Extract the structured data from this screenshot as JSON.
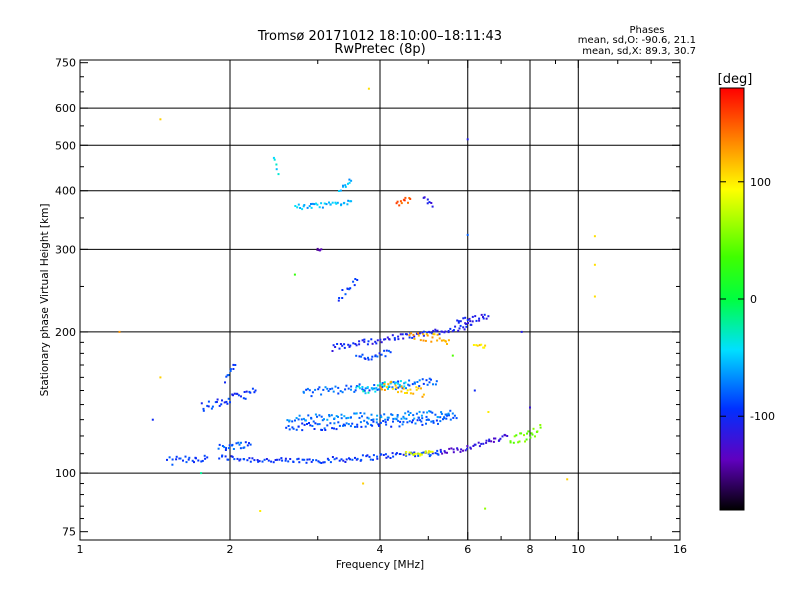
{
  "header": {
    "title_line1": "Tromsø 20171012 18:10:00–18:11:43",
    "title_line2": "RwPretec (8p)"
  },
  "phases_box": {
    "heading": "Phases",
    "line_o": "mean, sd,O: -90.6, 21.1",
    "line_x": "mean, sd,X:  89.3, 30.7"
  },
  "chart_data": {
    "type": "scatter",
    "xlabel": "Frequency [MHz]",
    "ylabel": "Stationary phase Virtual Height [km]",
    "x_scale": "log",
    "y_scale": "log",
    "xlim": [
      1,
      16
    ],
    "ylim": [
      72,
      760
    ],
    "x_ticks": [
      1,
      2,
      4,
      6,
      8,
      10,
      16
    ],
    "x_tick_labels": [
      "1",
      "2",
      "4",
      "6",
      "8",
      "10",
      "16"
    ],
    "x_minor_ticks": [
      3,
      5,
      7,
      9,
      12,
      14
    ],
    "y_ticks": [
      75,
      100,
      200,
      300,
      400,
      500,
      600,
      750
    ],
    "y_tick_labels": [
      "75",
      "100",
      "200",
      "300",
      "400",
      "500",
      "600",
      "750"
    ],
    "y_minor_ticks": [
      80,
      85,
      90,
      95,
      110,
      120,
      130,
      140,
      150,
      160,
      170,
      180,
      190,
      250,
      350,
      450,
      550,
      650,
      700
    ],
    "x_grid": [
      2,
      4,
      6,
      8,
      10
    ],
    "y_grid": [
      100,
      200,
      300,
      400,
      500,
      600
    ],
    "grid": true,
    "colorbar": {
      "label": "[deg]",
      "range": [
        -180,
        180
      ],
      "ticks": [
        100,
        0,
        -100
      ],
      "tick_labels": [
        "100",
        "0",
        "-100"
      ]
    },
    "series": [
      {
        "traces": [
          {
            "f": [
              1.9,
              2.2,
              2.6,
              3.0,
              3.4,
              3.8,
              4.2,
              4.6,
              5.0,
              5.3
            ],
            "h": [
              108,
              107,
              106,
              106.5,
              107,
              108,
              109,
              110,
              110,
              111
            ],
            "phase": -95,
            "jitter": 1.5
          },
          {
            "f": [
              5.3,
              5.7,
              6.1,
              6.5,
              6.9,
              7.2
            ],
            "h": [
              111,
              112,
              114,
              116,
              118,
              120
            ],
            "phase": -120,
            "jitter": 1.5
          },
          {
            "f": [
              4.5,
              4.8,
              5.1
            ],
            "h": [
              110,
              110,
              111
            ],
            "phase": 90,
            "jitter": 1
          },
          {
            "f": [
              7.3,
              7.6,
              7.9,
              8.2,
              8.4
            ],
            "h": [
              117,
              119,
              120,
              122,
              125
            ],
            "phase": 50,
            "jitter": 3
          },
          {
            "f": [
              1.5,
              1.65,
              1.8
            ],
            "h": [
              106,
              107,
              108
            ],
            "phase": -95,
            "jitter": 2
          }
        ]
      },
      {
        "traces": [
          {
            "f": [
              1.9,
              2.0,
              2.1,
              2.2
            ],
            "h": [
              113,
              114,
              115,
              115
            ],
            "phase": -85,
            "jitter": 2
          },
          {
            "f": [
              2.6,
              2.9,
              3.2,
              3.5,
              3.8,
              4.1,
              4.4,
              4.7,
              5.0,
              5.3,
              5.7
            ],
            "h": [
              125,
              126,
              126,
              127,
              127,
              128,
              128,
              129,
              129,
              130,
              131
            ],
            "phase": -85,
            "jitter": 2.5
          },
          {
            "f": [
              2.6,
              2.9,
              3.2,
              3.6,
              4.0,
              4.4,
              4.8,
              5.2,
              5.6
            ],
            "h": [
              130,
              131,
              131,
              132,
              132,
              133,
              133,
              134,
              134
            ],
            "phase": -70,
            "jitter": 2.5
          },
          {
            "f": [
              1.75,
              1.85,
              1.95,
              2.05,
              2.15,
              2.25
            ],
            "h": [
              138,
              140,
              142,
              145,
              147,
              150
            ],
            "phase": -95,
            "jitter": 3
          },
          {
            "f": [
              1.95,
              2.0,
              2.05
            ],
            "h": [
              158,
              164,
              170
            ],
            "phase": -90,
            "jitter": 2
          },
          {
            "f": [
              2.8,
              3.1,
              3.4,
              3.7,
              4.0,
              4.3,
              4.6,
              4.9,
              5.2
            ],
            "h": [
              148,
              150,
              151,
              152,
              153,
              154,
              155,
              156,
              157
            ],
            "phase": -80,
            "jitter": 3
          },
          {
            "f": [
              3.6,
              3.9,
              4.2,
              4.5
            ],
            "h": [
              150,
              152,
              154,
              156
            ],
            "phase": -40,
            "jitter": 3
          },
          {
            "f": [
              4.0,
              4.3,
              4.6,
              4.9
            ],
            "h": [
              155,
              152,
              150,
              147
            ],
            "phase": 115,
            "jitter": 4
          },
          {
            "f": [
              3.2,
              3.5,
              3.8,
              4.1,
              4.4,
              4.7,
              5.0,
              5.3,
              5.6,
              5.9,
              6.1
            ],
            "h": [
              185,
              188,
              191,
              193,
              195,
              197,
              199,
              201,
              203,
              205,
              207
            ],
            "phase": -105,
            "jitter": 3
          },
          {
            "f": [
              3.6,
              3.9,
              4.2
            ],
            "h": [
              175,
              178,
              181
            ],
            "phase": -90,
            "jitter": 3
          },
          {
            "f": [
              5.7,
              6.0,
              6.3,
              6.6
            ],
            "h": [
              210,
              212,
              214,
              216
            ],
            "phase": -110,
            "jitter": 3
          },
          {
            "f": [
              4.6,
              4.9,
              5.2,
              5.5
            ],
            "h": [
              196,
              195,
              194,
              192
            ],
            "phase": 120,
            "jitter": 4
          },
          {
            "f": [
              6.2,
              6.5
            ],
            "h": [
              186,
              187
            ],
            "phase": 110,
            "jitter": 2
          },
          {
            "f": [
              3.3,
              3.45,
              3.6
            ],
            "h": [
              236,
              248,
              258
            ],
            "phase": -95,
            "jitter": 4
          },
          {
            "f": [
              2.7,
              2.9,
              3.1,
              3.3,
              3.5
            ],
            "h": [
              370,
              370,
              372,
              375,
              380
            ],
            "phase": -55,
            "jitter": 5
          },
          {
            "f": [
              3.3,
              3.4,
              3.5
            ],
            "h": [
              400,
              410,
              420
            ],
            "phase": -60,
            "jitter": 5
          },
          {
            "f": [
              2.5,
              2.45
            ],
            "h": [
              440,
              470
            ],
            "phase": -45,
            "jitter": 6
          },
          {
            "f": [
              4.3,
              4.45,
              4.6
            ],
            "h": [
              372,
              378,
              384
            ],
            "phase": 155,
            "jitter": 6
          },
          {
            "f": [
              4.9,
              5.1
            ],
            "h": [
              385,
              370
            ],
            "phase": -110,
            "jitter": 6
          },
          {
            "f": [
              3.0,
              3.05
            ],
            "h": [
              300,
              300
            ],
            "phase": -140,
            "jitter": 2
          }
        ]
      }
    ],
    "isolated_points": [
      {
        "f": 1.45,
        "h": 568,
        "phase": 110
      },
      {
        "f": 1.2,
        "h": 200,
        "phase": 130
      },
      {
        "f": 1.45,
        "h": 160,
        "phase": 110
      },
      {
        "f": 1.4,
        "h": 130,
        "phase": -100
      },
      {
        "f": 3.8,
        "h": 660,
        "phase": 105
      },
      {
        "f": 6.0,
        "h": 515,
        "phase": -110
      },
      {
        "f": 6.0,
        "h": 322,
        "phase": -80
      },
      {
        "f": 10.8,
        "h": 320,
        "phase": 105
      },
      {
        "f": 10.8,
        "h": 278,
        "phase": 105
      },
      {
        "f": 10.8,
        "h": 238,
        "phase": 105
      },
      {
        "f": 9.5,
        "h": 97,
        "phase": 110
      },
      {
        "f": 2.3,
        "h": 83,
        "phase": 100
      },
      {
        "f": 6.5,
        "h": 84,
        "phase": 60
      },
      {
        "f": 3.7,
        "h": 95,
        "phase": 110
      },
      {
        "f": 2.7,
        "h": 265,
        "phase": 30
      },
      {
        "f": 1.75,
        "h": 100,
        "phase": -20
      },
      {
        "f": 5.6,
        "h": 178,
        "phase": 40
      },
      {
        "f": 6.6,
        "h": 135,
        "phase": 100
      },
      {
        "f": 6.2,
        "h": 150,
        "phase": -100
      },
      {
        "f": 7.7,
        "h": 200,
        "phase": -110
      },
      {
        "f": 8.0,
        "h": 138,
        "phase": -120
      }
    ]
  }
}
